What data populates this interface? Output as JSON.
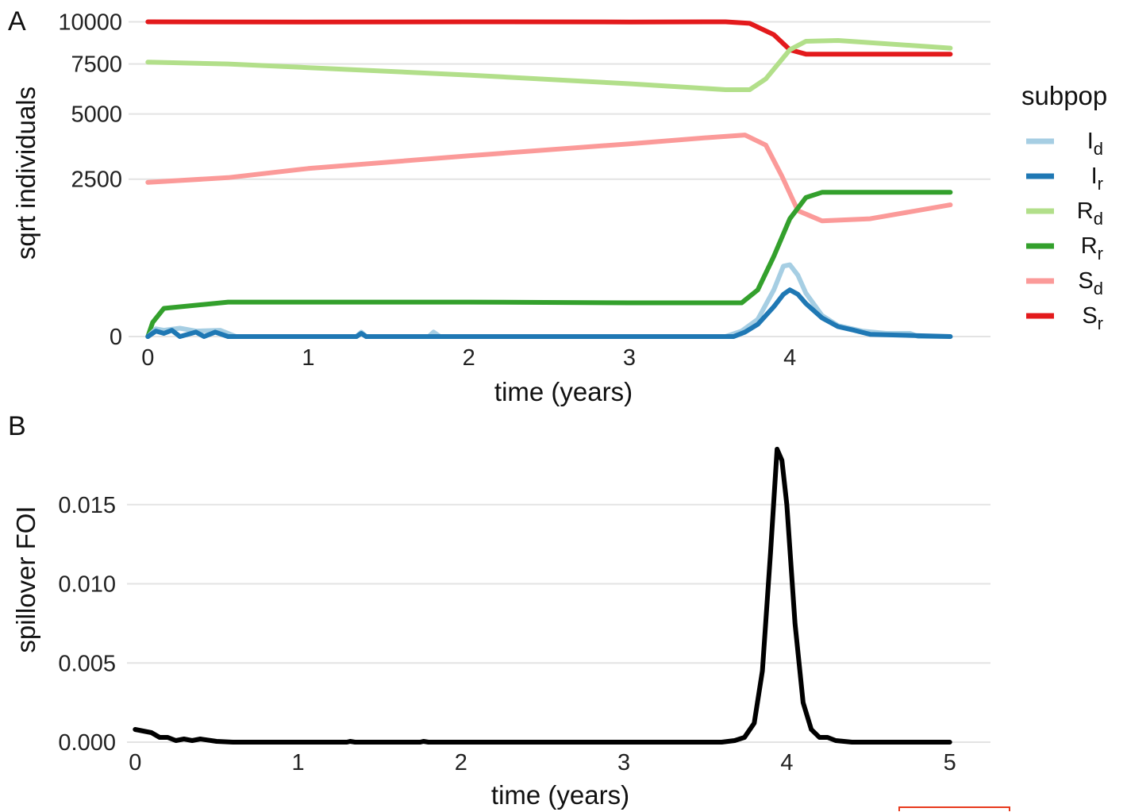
{
  "chart_data": [
    {
      "panel": "A",
      "type": "line",
      "xlabel": "time (years)",
      "ylabel": "sqrt individuals",
      "xlim": [
        -0.12,
        5.25
      ],
      "x_ticks": [
        "0",
        "1",
        "2",
        "3",
        "4"
      ],
      "y_scale": "sqrt",
      "y_ticks": [
        "0",
        "2500",
        "5000",
        "7500",
        "10000"
      ],
      "y_tick_values": [
        0,
        2500,
        5000,
        7500,
        10000
      ],
      "ylim": [
        0,
        10900
      ],
      "grid": true,
      "legend": {
        "title": "subpop",
        "position": "right",
        "entries": [
          {
            "base": "I",
            "sub": "d",
            "color": "#a6cee3"
          },
          {
            "base": "I",
            "sub": "r",
            "color": "#1f78b4"
          },
          {
            "base": "R",
            "sub": "d",
            "color": "#b2df8a"
          },
          {
            "base": "R",
            "sub": "r",
            "color": "#33a02c"
          },
          {
            "base": "S",
            "sub": "d",
            "color": "#fb9a99"
          },
          {
            "base": "S",
            "sub": "r",
            "color": "#e31a1c"
          }
        ]
      },
      "series": [
        {
          "key": "Sr",
          "color": "#e31a1c",
          "points": [
            [
              0,
              10000
            ],
            [
              1,
              9990
            ],
            [
              2,
              10000
            ],
            [
              3,
              9990
            ],
            [
              3.6,
              10000
            ],
            [
              3.75,
              9900
            ],
            [
              3.9,
              9200
            ],
            [
              4.0,
              8300
            ],
            [
              4.1,
              8050
            ],
            [
              5.0,
              8050
            ]
          ]
        },
        {
          "key": "Rd",
          "color": "#b2df8a",
          "points": [
            [
              0,
              7600
            ],
            [
              0.5,
              7500
            ],
            [
              1,
              7300
            ],
            [
              2,
              6900
            ],
            [
              3,
              6450
            ],
            [
              3.6,
              6150
            ],
            [
              3.75,
              6150
            ],
            [
              3.85,
              6700
            ],
            [
              4.0,
              8300
            ],
            [
              4.1,
              8800
            ],
            [
              4.3,
              8850
            ],
            [
              5.0,
              8400
            ]
          ]
        },
        {
          "key": "Sd",
          "color": "#fb9a99",
          "points": [
            [
              0,
              2400
            ],
            [
              0.5,
              2550
            ],
            [
              1,
              2850
            ],
            [
              2,
              3300
            ],
            [
              3,
              3750
            ],
            [
              3.5,
              4000
            ],
            [
              3.72,
              4100
            ],
            [
              3.85,
              3700
            ],
            [
              3.95,
              2600
            ],
            [
              4.05,
              1600
            ],
            [
              4.2,
              1350
            ],
            [
              4.5,
              1400
            ],
            [
              5.0,
              1750
            ]
          ]
        },
        {
          "key": "Rr",
          "color": "#33a02c",
          "points": [
            [
              0,
              0
            ],
            [
              0.03,
              20
            ],
            [
              0.1,
              80
            ],
            [
              0.5,
              120
            ],
            [
              1,
              120
            ],
            [
              2,
              120
            ],
            [
              3,
              115
            ],
            [
              3.7,
              115
            ],
            [
              3.8,
              220
            ],
            [
              3.9,
              650
            ],
            [
              4.0,
              1400
            ],
            [
              4.1,
              1950
            ],
            [
              4.2,
              2100
            ],
            [
              5.0,
              2100
            ]
          ]
        },
        {
          "key": "Id",
          "color": "#a6cee3",
          "points": [
            [
              0,
              0
            ],
            [
              0.05,
              6
            ],
            [
              0.1,
              4
            ],
            [
              0.2,
              7
            ],
            [
              0.3,
              3
            ],
            [
              0.45,
              4
            ],
            [
              0.55,
              0
            ],
            [
              1.3,
              0
            ],
            [
              1.33,
              2
            ],
            [
              1.36,
              0
            ],
            [
              1.75,
              0
            ],
            [
              1.78,
              2
            ],
            [
              1.82,
              0
            ],
            [
              3.6,
              0
            ],
            [
              3.7,
              3
            ],
            [
              3.8,
              30
            ],
            [
              3.9,
              220
            ],
            [
              3.96,
              500
            ],
            [
              4.0,
              520
            ],
            [
              4.05,
              380
            ],
            [
              4.1,
              190
            ],
            [
              4.2,
              45
            ],
            [
              4.3,
              12
            ],
            [
              4.45,
              3
            ],
            [
              4.6,
              1
            ],
            [
              4.75,
              1
            ],
            [
              4.8,
              0
            ],
            [
              5.0,
              0
            ]
          ]
        },
        {
          "key": "Ir",
          "color": "#1f78b4",
          "points": [
            [
              0,
              0
            ],
            [
              0.05,
              3
            ],
            [
              0.1,
              1
            ],
            [
              0.15,
              4
            ],
            [
              0.2,
              0
            ],
            [
              0.3,
              2
            ],
            [
              0.35,
              0
            ],
            [
              0.42,
              2
            ],
            [
              0.5,
              0
            ],
            [
              1.3,
              0
            ],
            [
              1.33,
              1
            ],
            [
              1.36,
              0
            ],
            [
              3.65,
              0
            ],
            [
              3.72,
              2
            ],
            [
              3.8,
              15
            ],
            [
              3.9,
              90
            ],
            [
              3.96,
              180
            ],
            [
              4.0,
              220
            ],
            [
              4.05,
              180
            ],
            [
              4.1,
              110
            ],
            [
              4.2,
              35
            ],
            [
              4.3,
              10
            ],
            [
              4.4,
              4
            ],
            [
              4.5,
              0.5
            ],
            [
              5.0,
              0
            ]
          ]
        }
      ]
    },
    {
      "panel": "B",
      "type": "line",
      "xlabel": "time (years)",
      "ylabel": "spillover FOI",
      "xlim": [
        -0.05,
        5.25
      ],
      "x_ticks": [
        "0",
        "1",
        "2",
        "3",
        "4",
        "5"
      ],
      "y_ticks": [
        "0.000",
        "0.005",
        "0.010",
        "0.015"
      ],
      "y_tick_values": [
        0,
        0.005,
        0.01,
        0.015
      ],
      "ylim": [
        0,
        0.0198
      ],
      "grid": true,
      "series": [
        {
          "key": "FOI",
          "color": "#000000",
          "points": [
            [
              0,
              0.0008
            ],
            [
              0.05,
              0.0007
            ],
            [
              0.1,
              0.0006
            ],
            [
              0.15,
              0.0003
            ],
            [
              0.2,
              0.0003
            ],
            [
              0.25,
              0.0001
            ],
            [
              0.3,
              0.0002
            ],
            [
              0.35,
              0.0001
            ],
            [
              0.4,
              0.0002
            ],
            [
              0.5,
              5e-05
            ],
            [
              0.6,
              0
            ],
            [
              1.3,
              0
            ],
            [
              1.32,
              5e-05
            ],
            [
              1.35,
              0
            ],
            [
              1.75,
              0
            ],
            [
              1.77,
              5e-05
            ],
            [
              1.8,
              0
            ],
            [
              3.6,
              0
            ],
            [
              3.68,
              0.0001
            ],
            [
              3.74,
              0.0003
            ],
            [
              3.8,
              0.0012
            ],
            [
              3.85,
              0.0045
            ],
            [
              3.9,
              0.012
            ],
            [
              3.94,
              0.0185
            ],
            [
              3.97,
              0.0178
            ],
            [
              4.0,
              0.015
            ],
            [
              4.05,
              0.0075
            ],
            [
              4.1,
              0.0025
            ],
            [
              4.15,
              0.0008
            ],
            [
              4.2,
              0.0003
            ],
            [
              4.25,
              0.0003
            ],
            [
              4.3,
              0.0001
            ],
            [
              4.4,
              0
            ],
            [
              5.0,
              0
            ]
          ]
        }
      ]
    }
  ]
}
